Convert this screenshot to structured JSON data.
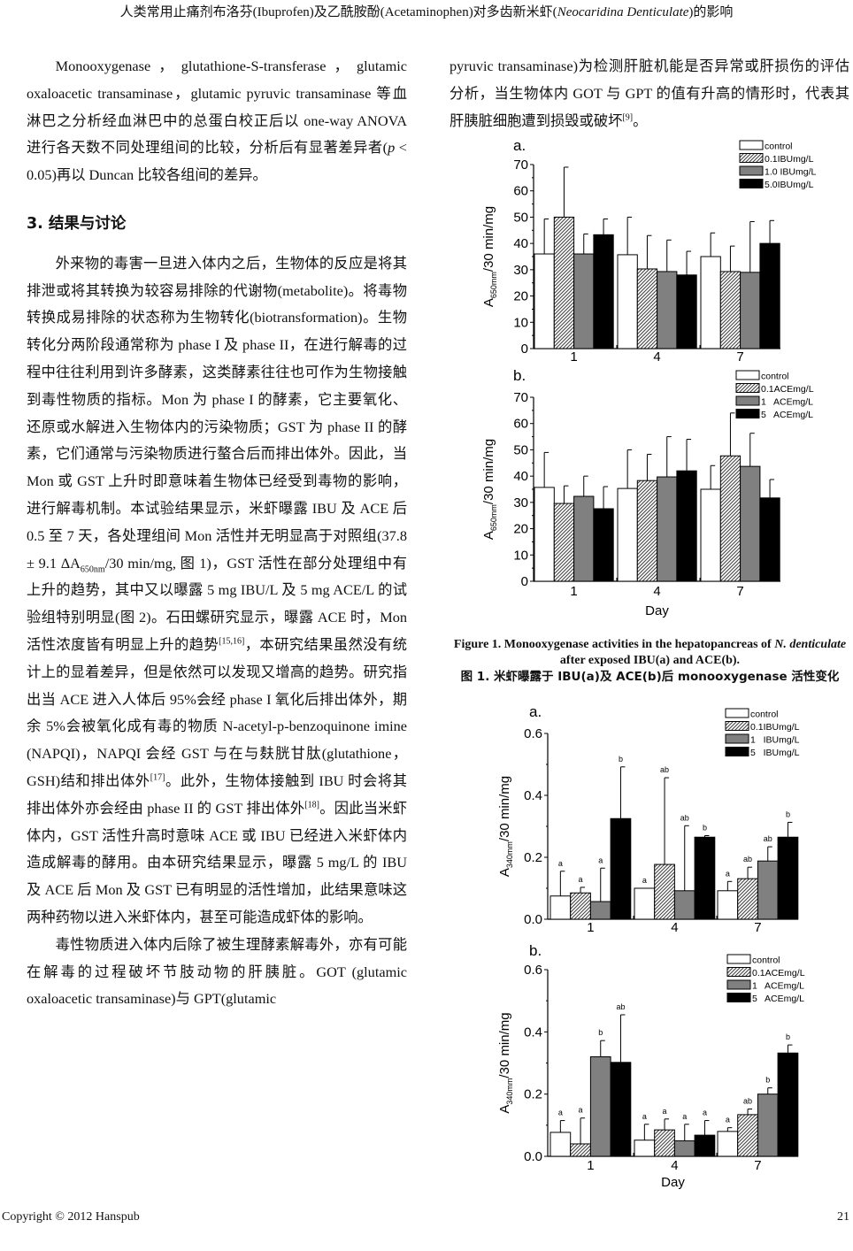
{
  "header": {
    "title_pre": "人类常用止痛剂布洛芬(Ibuprofen)及乙酰胺酚(Acetaminophen)对多齿新米虾(",
    "title_italic": "Neocaridina Denticulate",
    "title_post": ")的影响"
  },
  "left": {
    "p1": [
      "Monooxygenase，glutathione-S-transferase，glutamic oxaloacetic transaminase，glutamic pyruvic transaminase 等血淋巴之分析经血淋巴中的总蛋白校正后以 one-way ANOVA 进行各天数不同处理组间的比较，分析后有显著差异者(",
      {
        "i": "p"
      },
      " < 0.05)再以 Duncan 比较各组间的差异。"
    ],
    "heading": "3.  结果与讨论",
    "p2": [
      "外来物的毒害一旦进入体内之后，生物体的反应是将其排泄或将其转换为较容易排除的代谢物(metabolite)。将毒物转换成易排除的状态称为生物转化(biotransformation)。生物转化分两阶段通常称为 phase I 及 phase II，在进行解毒的过程中往往利用到许多酵素，这类酵素往往也可作为生物接触到毒性物质的指标。Mon 为 phase I 的酵素，它主要氧化、还原或水解进入生物体内的污染物质；GST 为 phase II 的酵素，它们通常与污染物质进行螯合后而排出体外。因此，当 Mon 或 GST 上升时即意味着生物体已经受到毒物的影响，进行解毒机制。本试验结果显示，米虾曝露 IBU 及 ACE 后 0.5 至 7 天，各处理组间 Mon 活性并无明显高于对照组(37.8 ± 9.1 ΔA",
      {
        "sub": "650nm"
      },
      "/30 min/mg, 图 1)，GST 活性在部分处理组中有上升的趋势，其中又以曝露 5 mg IBU/L 及 5 mg ACE/L 的试验组特别明显(图 2)。石田螺研究显示，曝露 ACE 时，Mon 活性浓度皆有明显上升的趋势",
      {
        "sup": "[15,16]"
      },
      "，本研究结果虽然没有统计上的显着差异，但是依然可以发现又增高的趋势。研究指出当 ACE 进入人体后 95%会经 phase I 氧化后排出体外，期余 5%会被氧化成有毒的物质 N-acetyl-p-benzoquinone imine (NAPQI)，NAPQI 会经 GST 与在与麸胱甘肽(glutathione，GSH)结和排出体外",
      {
        "sup": "[17]"
      },
      "。此外，生物体接触到 IBU 时会将其排出体外亦会经由 phase II 的 GST 排出体外",
      {
        "sup": "[18]"
      },
      "。因此当米虾体内，GST 活性升高时意味 ACE 或 IBU 已经进入米虾体内造成解毒的酵用。由本研究结果显示，曝露 5 mg/L 的 IBU 及 ACE 后 Mon 及 GST 已有明显的活性增加，此结果意味这两种药物以进入米虾体内，甚至可能造成虾体的影响。"
    ],
    "p3": [
      "毒性物质进入体内后除了被生理酵素解毒外，亦有可能在解毒的过程破坏节肢动物的肝胰脏。GOT (glutamic oxaloacetic transaminase)与 GPT(glutamic"
    ]
  },
  "right": {
    "p1": [
      "pyruvic transaminase)为检测肝脏机能是否异常或肝损伤的评估分析，当生物体内 GOT 与 GPT 的值有升高的情形时，代表其肝胰脏细胞遭到损毁或破坏",
      {
        "sup": "[9]"
      },
      "。"
    ]
  },
  "figure1_caption": {
    "line1_pre": "Figure 1. Monooxygenase activities in the hepatopancreas of ",
    "line1_italic": "N. denticulate",
    "line1_post": " after exposed IBU(a) and ACE(b).",
    "line2": "图 1.  米虾曝露于 IBU(a)及 ACE(b)后 monooxygenase 活性变化"
  },
  "footer": {
    "copyright": "Copyright © 2012 Hanspub",
    "page": "21"
  },
  "colors": {
    "control": "#ffffff",
    "low": "hatched",
    "mid": "#808080",
    "high": "#000000"
  },
  "chart_data": [
    {
      "type": "bar",
      "panel": "a.",
      "ylabel_main": "A",
      "ylabel_sub": "650mm",
      "ylabel_rest": "/30 min/mg",
      "xlabel": "",
      "categories": [
        "1",
        "4",
        "7"
      ],
      "ylim": [
        0,
        70
      ],
      "yticks": [
        "0",
        "10",
        "20",
        "30",
        "40",
        "50",
        "60",
        "70"
      ],
      "ytick_values": [
        0,
        10,
        20,
        30,
        40,
        50,
        60,
        70
      ],
      "legend_position": "top-right",
      "series": [
        {
          "name": "control",
          "values": [
            36,
            35.7,
            35
          ],
          "error_top": [
            49.3,
            50,
            44
          ]
        },
        {
          "name": "0.1IBUmg/L",
          "values": [
            50,
            30.3,
            29.3
          ],
          "error_top": [
            69,
            43,
            39
          ]
        },
        {
          "name": "1.0 IBUmg/L",
          "values": [
            36,
            29.3,
            29
          ],
          "error_top": [
            43.6,
            41.3,
            48.3
          ]
        },
        {
          "name": "5.0IBUmg/L",
          "values": [
            43.3,
            28,
            40
          ],
          "error_top": [
            49.3,
            37,
            48.7
          ]
        }
      ]
    },
    {
      "type": "bar",
      "panel": "b.",
      "ylabel_main": "A",
      "ylabel_sub": "650mm",
      "ylabel_rest": "/30 min/mg",
      "xlabel": "Day",
      "categories": [
        "1",
        "4",
        "7"
      ],
      "ylim": [
        0,
        70
      ],
      "yticks": [
        "0",
        "10",
        "20",
        "30",
        "40",
        "50",
        "60",
        "70"
      ],
      "ytick_values": [
        0,
        10,
        20,
        30,
        40,
        50,
        60,
        70
      ],
      "legend_position": "top-right",
      "series": [
        {
          "name": "control",
          "values": [
            35.7,
            35.3,
            35
          ],
          "error_top": [
            49,
            50,
            44
          ]
        },
        {
          "name": "0.1ACEmg/L",
          "values": [
            29.6,
            38.3,
            47.7
          ],
          "error_top": [
            36.3,
            48.3,
            64
          ]
        },
        {
          "name": "1   ACEmg/L",
          "values": [
            32.3,
            39.7,
            43.7
          ],
          "error_top": [
            40,
            55,
            56.3
          ]
        },
        {
          "name": "5   ACEmg/L",
          "values": [
            27.6,
            42,
            31.7
          ],
          "error_top": [
            36,
            54,
            38.7
          ]
        }
      ]
    },
    {
      "type": "bar",
      "panel": "a.",
      "ylabel_main": "A",
      "ylabel_sub": "340mm",
      "ylabel_rest": "/30 min/mg",
      "xlabel": "",
      "categories": [
        "1",
        "4",
        "7"
      ],
      "ylim": [
        0,
        0.6
      ],
      "yticks": [
        "0.0",
        "0.2",
        "0.4",
        "0.6"
      ],
      "ytick_values": [
        0,
        0.2,
        0.4,
        0.6
      ],
      "legend_position": "top-right",
      "series": [
        {
          "name": "control",
          "values": [
            0.075,
            0.1,
            0.092
          ],
          "error_top": [
            0.155,
            null,
            0.122
          ],
          "letters": [
            "a",
            "a",
            "a"
          ]
        },
        {
          "name": "0.1IBUmg/L",
          "values": [
            0.085,
            0.177,
            0.131
          ],
          "error_top": [
            0.103,
            0.457,
            0.168
          ],
          "letters": [
            "a",
            "ab",
            "ab"
          ]
        },
        {
          "name": "1   IBUmg/L",
          "values": [
            0.057,
            0.092,
            0.188
          ],
          "error_top": [
            0.165,
            0.302,
            0.234
          ],
          "letters": [
            "a",
            "ab",
            "ab"
          ]
        },
        {
          "name": "5   IBUmg/L",
          "values": [
            0.325,
            0.265,
            0.265
          ],
          "error_top": [
            0.492,
            0.27,
            0.313
          ],
          "letters": [
            "b",
            "b",
            "b"
          ]
        }
      ]
    },
    {
      "type": "bar",
      "panel": "b.",
      "ylabel_main": "A",
      "ylabel_sub": "340mm",
      "ylabel_rest": "/30 min/mg",
      "xlabel": "Day",
      "categories": [
        "1",
        "4",
        "7"
      ],
      "ylim": [
        0,
        0.6
      ],
      "yticks": [
        "0.0",
        "0.2",
        "0.4",
        "0.6"
      ],
      "ytick_values": [
        0,
        0.2,
        0.4,
        0.6
      ],
      "legend_position": "top-right",
      "series": [
        {
          "name": "control",
          "values": [
            0.077,
            0.052,
            0.08
          ],
          "error_top": [
            0.115,
            0.103,
            0.092
          ],
          "letters": [
            "a",
            "a",
            "a"
          ]
        },
        {
          "name": "0.1ACEmg/L",
          "values": [
            0.04,
            0.085,
            0.134
          ],
          "error_top": [
            0.123,
            0.12,
            0.152
          ],
          "letters": [
            "a",
            "a",
            "ab"
          ]
        },
        {
          "name": "1   ACEmg/L",
          "values": [
            0.32,
            0.05,
            0.2
          ],
          "error_top": [
            0.372,
            0.103,
            0.22
          ],
          "letters": [
            "b",
            "a",
            "b"
          ]
        },
        {
          "name": "5   ACEmg/L",
          "values": [
            0.302,
            0.068,
            0.332
          ],
          "error_top": [
            0.455,
            0.115,
            0.358
          ],
          "letters": [
            "ab",
            "a",
            "b"
          ]
        }
      ]
    }
  ]
}
